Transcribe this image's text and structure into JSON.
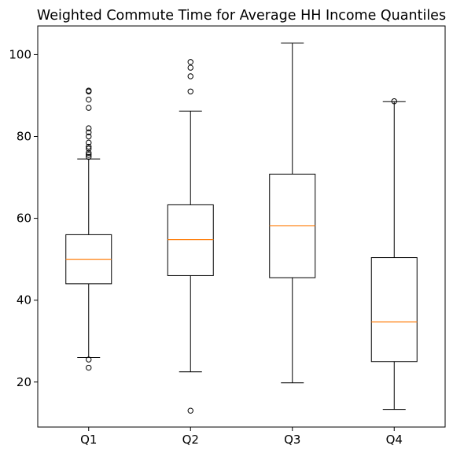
{
  "chart_data": {
    "type": "boxplot",
    "title": "Weighted Commute Time for Average HH Income Quantiles",
    "xlabel": "",
    "ylabel": "",
    "categories": [
      "Q1",
      "Q2",
      "Q3",
      "Q4"
    ],
    "ylim": [
      9,
      107
    ],
    "yticks": [
      20,
      40,
      60,
      80,
      100
    ],
    "grid": false,
    "colors": {
      "box": "#000000",
      "median": "#ff7f0e"
    },
    "boxes": [
      {
        "label": "Q1",
        "whisker_low": 26,
        "q1": 44,
        "median": 50,
        "q3": 56,
        "whisker_high": 74.5,
        "fliers": [
          23.5,
          25.5,
          75,
          75.5,
          76,
          77,
          77.5,
          78.5,
          80,
          81,
          82,
          87,
          89,
          91,
          91.2
        ]
      },
      {
        "label": "Q2",
        "whisker_low": 22.5,
        "q1": 46,
        "median": 54.8,
        "q3": 63.3,
        "whisker_high": 86.2,
        "fliers": [
          13,
          91,
          94.7,
          96.8,
          98.2
        ]
      },
      {
        "label": "Q3",
        "whisker_low": 19.8,
        "q1": 45.5,
        "median": 58.2,
        "q3": 70.8,
        "whisker_high": 102.8,
        "fliers": []
      },
      {
        "label": "Q4",
        "whisker_low": 13.3,
        "q1": 25,
        "median": 34.7,
        "q3": 50.4,
        "whisker_high": 88.5,
        "fliers": [
          88.6
        ]
      }
    ]
  }
}
